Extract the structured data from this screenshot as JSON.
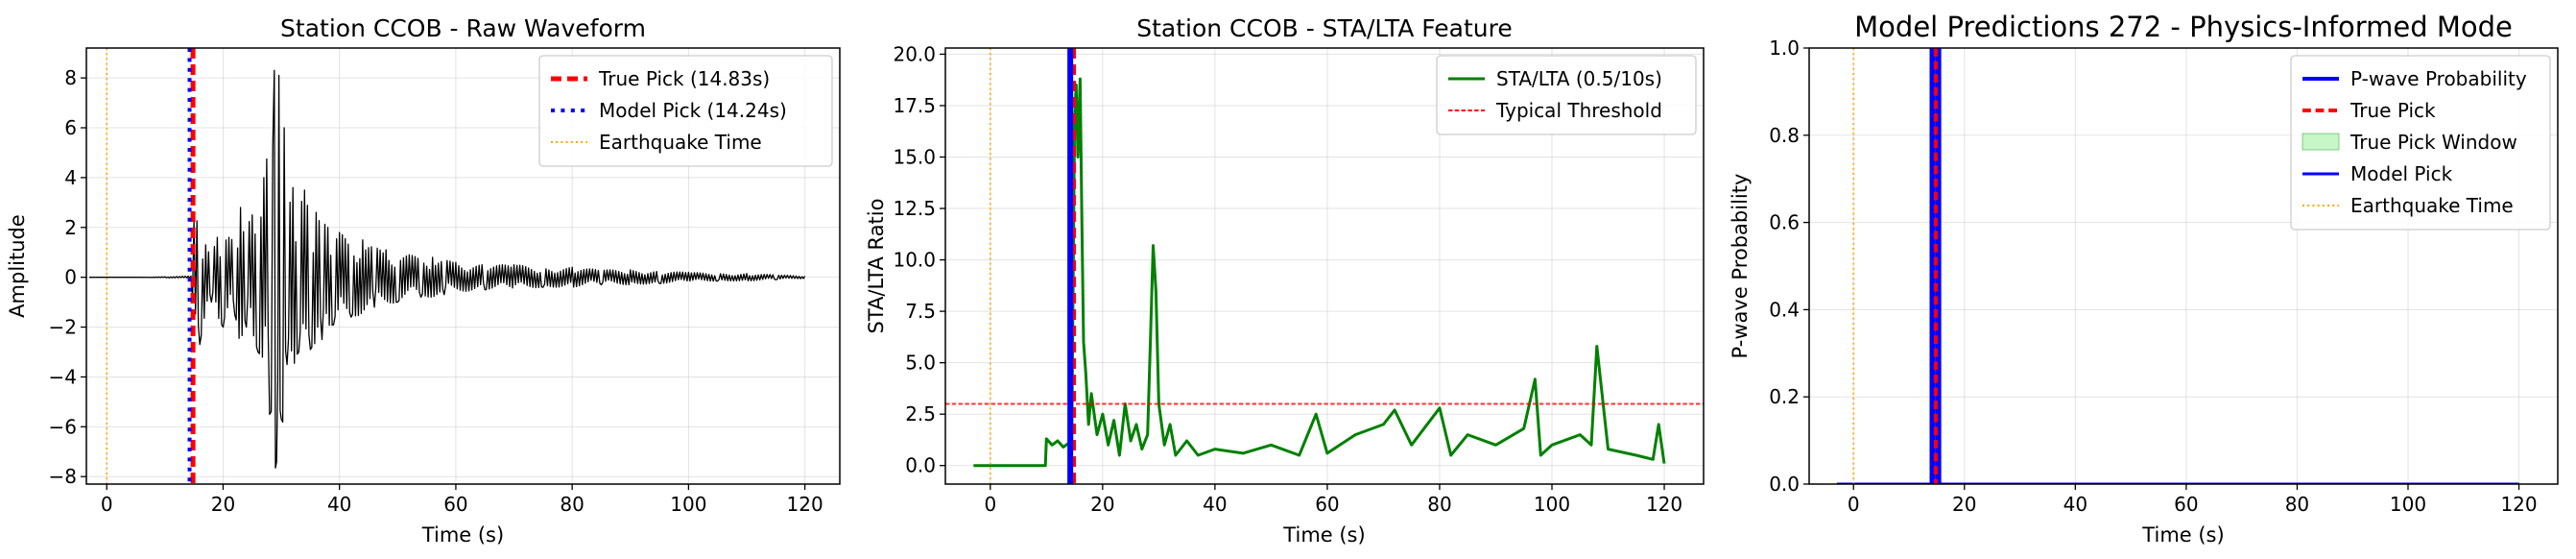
{
  "chart_data": [
    {
      "type": "line",
      "title": "Station CCOB - Raw Waveform",
      "xlabel": "Time (s)",
      "ylabel": "Amplitude",
      "xlim": [
        -3.5,
        126
      ],
      "ylim": [
        -8.3,
        9.2
      ],
      "xticks": [
        0,
        20,
        40,
        60,
        80,
        100,
        120
      ],
      "yticks": [
        -8,
        -6,
        -4,
        -2,
        0,
        2,
        4,
        6,
        8
      ],
      "grid": true,
      "legend_position": "top-right",
      "legend": [
        {
          "label": "True Pick (14.83s)",
          "color": "#ff0000",
          "style": "dashed",
          "width": 5
        },
        {
          "label": "Model Pick (14.24s)",
          "color": "#0000ff",
          "style": "dotted",
          "width": 4
        },
        {
          "label": "Earthquake Time",
          "color": "#ffa500",
          "style": "dotted",
          "width": 2
        }
      ],
      "vlines": [
        {
          "x": 14.83,
          "color": "#ff0000",
          "style": "dashed",
          "width": 5
        },
        {
          "x": 14.24,
          "color": "#0000ff",
          "style": "dotted",
          "width": 4
        },
        {
          "x": 0,
          "color": "#ffa500",
          "style": "dotted",
          "width": 2
        }
      ],
      "series": [
        {
          "color": "#000000",
          "kind": "waveform",
          "x": [
            -3,
            0,
            5,
            10,
            14.5,
            15,
            16,
            17,
            18,
            19,
            20,
            21,
            22,
            23,
            24,
            25,
            26,
            27,
            28,
            28.8,
            29.2,
            29.6,
            30,
            30.5,
            31,
            32,
            33,
            34,
            35,
            36,
            37,
            38,
            39,
            40,
            42,
            44,
            46,
            48,
            50,
            52,
            54,
            56,
            58,
            60,
            65,
            70,
            75,
            80,
            85,
            90,
            95,
            100,
            105,
            110,
            115,
            120
          ],
          "y": [
            0,
            0,
            0,
            0.02,
            0.05,
            2.3,
            -2.7,
            1.3,
            -1.0,
            1.6,
            -2.0,
            1.6,
            -1.5,
            2.8,
            -2.0,
            2.5,
            -3.0,
            4.0,
            -5.5,
            8.3,
            -7.4,
            8.1,
            -5.7,
            6.0,
            -3.5,
            3.6,
            -3.0,
            3.5,
            -2.9,
            2.6,
            -2.5,
            2.0,
            -1.9,
            1.8,
            -1.6,
            1.5,
            -1.2,
            1.1,
            -1.0,
            0.9,
            -0.8,
            0.8,
            -0.7,
            0.6,
            -0.5,
            0.5,
            -0.4,
            0.4,
            -0.3,
            0.3,
            -0.25,
            0.2,
            -0.15,
            0.15,
            -0.1,
            0.05
          ]
        }
      ]
    },
    {
      "type": "line",
      "title": "Station CCOB - STA/LTA Feature",
      "xlabel": "Time (s)",
      "ylabel": "STA/LTA Ratio",
      "xlim": [
        -8,
        127
      ],
      "ylim": [
        -0.9,
        20.3
      ],
      "xticks": [
        0,
        20,
        40,
        60,
        80,
        100,
        120
      ],
      "yticks": [
        0.0,
        2.5,
        5.0,
        7.5,
        10.0,
        12.5,
        15.0,
        17.5,
        20.0
      ],
      "grid": true,
      "legend_position": "top-right",
      "legend": [
        {
          "label": "STA/LTA (0.5/10s)",
          "color": "#008000",
          "style": "solid",
          "width": 3
        },
        {
          "label": "Typical Threshold",
          "color": "#ff0000",
          "style": "dashed",
          "width": 2
        }
      ],
      "hlines": [
        {
          "y": 3.0,
          "color": "#ff0000",
          "style": "dashed",
          "width": 2
        }
      ],
      "vlines": [
        {
          "x": 14.83,
          "color": "#ff0000",
          "style": "dashed",
          "width": 5
        },
        {
          "x": 14.24,
          "color": "#0000ff",
          "style": "solid",
          "width": 6
        },
        {
          "x": 0,
          "color": "#ffa500",
          "style": "dotted",
          "width": 2
        }
      ],
      "series": [
        {
          "name": "STA/LTA (0.5/10s)",
          "color": "#008000",
          "x": [
            -3,
            0,
            5,
            9.8,
            10,
            11,
            12,
            13,
            14,
            14.5,
            15,
            15.3,
            15.6,
            16,
            16.3,
            16.6,
            17,
            17.5,
            18,
            19,
            20,
            21,
            22,
            23,
            24,
            25,
            26,
            27,
            28,
            28.5,
            29,
            29.5,
            30,
            31,
            32,
            33,
            35,
            37,
            40,
            45,
            50,
            55,
            58,
            60,
            65,
            70,
            72,
            75,
            80,
            82,
            85,
            90,
            95,
            97,
            98,
            100,
            105,
            107,
            108,
            110,
            115,
            118,
            119,
            120
          ],
          "y": [
            0,
            0,
            0,
            0,
            1.3,
            1.0,
            1.2,
            0.9,
            1.1,
            1.2,
            16.8,
            18.5,
            15.0,
            18.8,
            12.0,
            6.0,
            4.5,
            2.0,
            3.5,
            1.5,
            2.5,
            1.0,
            2.2,
            0.5,
            3.0,
            1.2,
            2.0,
            0.8,
            1.5,
            6.0,
            10.7,
            8.5,
            3.0,
            1.0,
            2.0,
            0.5,
            1.2,
            0.5,
            0.8,
            0.6,
            1.0,
            0.5,
            2.5,
            0.6,
            1.5,
            2.0,
            2.7,
            1.0,
            2.8,
            0.5,
            1.5,
            1.0,
            1.8,
            4.2,
            0.5,
            1.0,
            1.5,
            1.0,
            5.8,
            0.8,
            0.5,
            0.3,
            2.0,
            0.1
          ]
        }
      ]
    },
    {
      "type": "line",
      "title": "Model Predictions 272 - Physics-Informed Mode",
      "xlabel": "Time (s)",
      "ylabel": "P-wave Probability",
      "xlim": [
        -8,
        127
      ],
      "ylim": [
        0,
        1
      ],
      "xticks": [
        0,
        20,
        40,
        60,
        80,
        100,
        120
      ],
      "yticks": [
        0.0,
        0.2,
        0.4,
        0.6,
        0.8,
        1.0
      ],
      "grid": true,
      "legend_position": "top-right",
      "legend": [
        {
          "label": "P-wave Probability",
          "color": "#0000ff",
          "style": "solid",
          "width": 4,
          "kind": "line"
        },
        {
          "label": "True Pick",
          "color": "#ff0000",
          "style": "dashed",
          "width": 4,
          "kind": "line"
        },
        {
          "label": "True Pick Window",
          "color": "#90ee90",
          "style": "solid",
          "width": 1,
          "kind": "patch"
        },
        {
          "label": "Model Pick",
          "color": "#0000ff",
          "style": "solid",
          "width": 3,
          "kind": "line"
        },
        {
          "label": "Earthquake Time",
          "color": "#ffa500",
          "style": "dotted",
          "width": 2,
          "kind": "line"
        }
      ],
      "span": {
        "x0": 14.33,
        "x1": 15.33,
        "color": "#90ee90"
      },
      "vlines": [
        {
          "x": 14.24,
          "color": "#0000ff",
          "style": "solid",
          "width": 6
        },
        {
          "x": 15.3,
          "color": "#0000ff",
          "style": "solid",
          "width": 6
        },
        {
          "x": 14.83,
          "color": "#ff0000",
          "style": "dashed",
          "width": 4
        },
        {
          "x": 0,
          "color": "#ffa500",
          "style": "dotted",
          "width": 2
        }
      ],
      "series": [
        {
          "name": "P-wave Probability",
          "color": "#0000ff",
          "x": [
            -3,
            120
          ],
          "y": [
            0,
            0
          ]
        }
      ]
    }
  ]
}
